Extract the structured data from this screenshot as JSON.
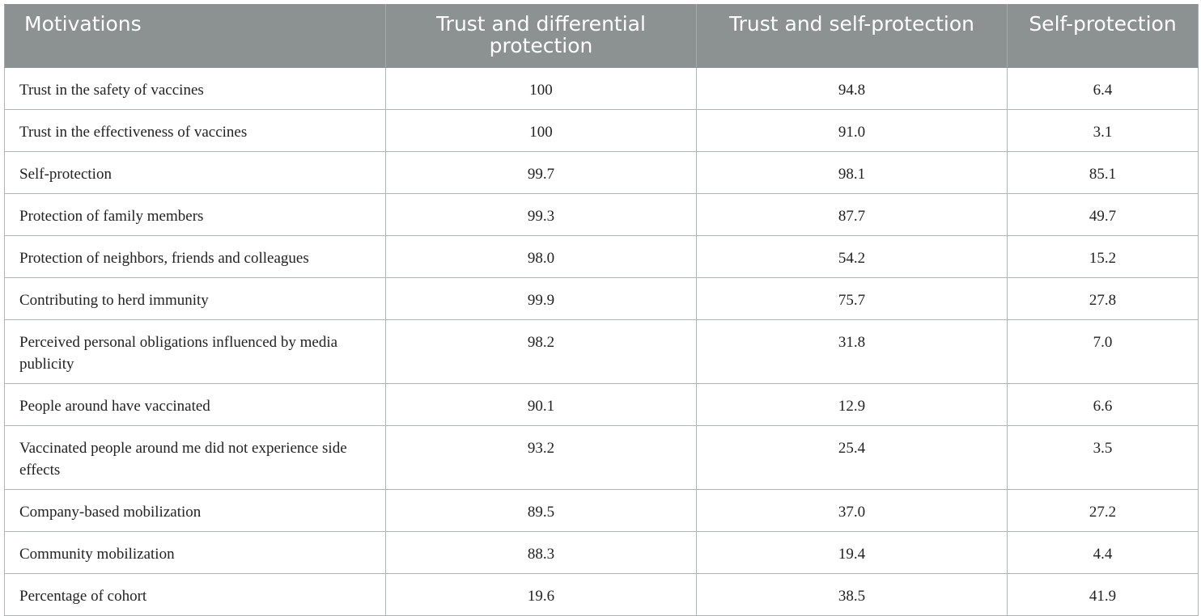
{
  "table": {
    "headers": [
      "Motivations",
      "Trust and differential protection",
      "Trust and self-protection",
      "Self-protection"
    ],
    "rows": [
      {
        "label": "Trust in the safety of vaccines",
        "values": [
          "100",
          "94.8",
          "6.4"
        ]
      },
      {
        "label": "Trust in the effectiveness of vaccines",
        "values": [
          "100",
          "91.0",
          "3.1"
        ]
      },
      {
        "label": "Self-protection",
        "values": [
          "99.7",
          "98.1",
          "85.1"
        ]
      },
      {
        "label": "Protection of family members",
        "values": [
          "99.3",
          "87.7",
          "49.7"
        ]
      },
      {
        "label": "Protection of neighbors, friends and colleagues",
        "values": [
          "98.0",
          "54.2",
          "15.2"
        ]
      },
      {
        "label": "Contributing to herd immunity",
        "values": [
          "99.9",
          "75.7",
          "27.8"
        ]
      },
      {
        "label": "Perceived personal obligations influenced by media publicity",
        "values": [
          "98.2",
          "31.8",
          "7.0"
        ]
      },
      {
        "label": "People around have vaccinated",
        "values": [
          "90.1",
          "12.9",
          "6.6"
        ]
      },
      {
        "label": "Vaccinated people around me did not experience side effects",
        "values": [
          "93.2",
          "25.4",
          "3.5"
        ]
      },
      {
        "label": "Company-based mobilization",
        "values": [
          "89.5",
          "37.0",
          "27.2"
        ]
      },
      {
        "label": "Community mobilization",
        "values": [
          "88.3",
          "19.4",
          "4.4"
        ]
      },
      {
        "label": "Percentage of cohort",
        "values": [
          "19.6",
          "38.5",
          "41.9"
        ]
      }
    ]
  },
  "colors": {
    "header_background": "#8c9192",
    "header_text": "#ffffff",
    "grid_lines": "#b0b4b5",
    "body_text": "#222222"
  }
}
